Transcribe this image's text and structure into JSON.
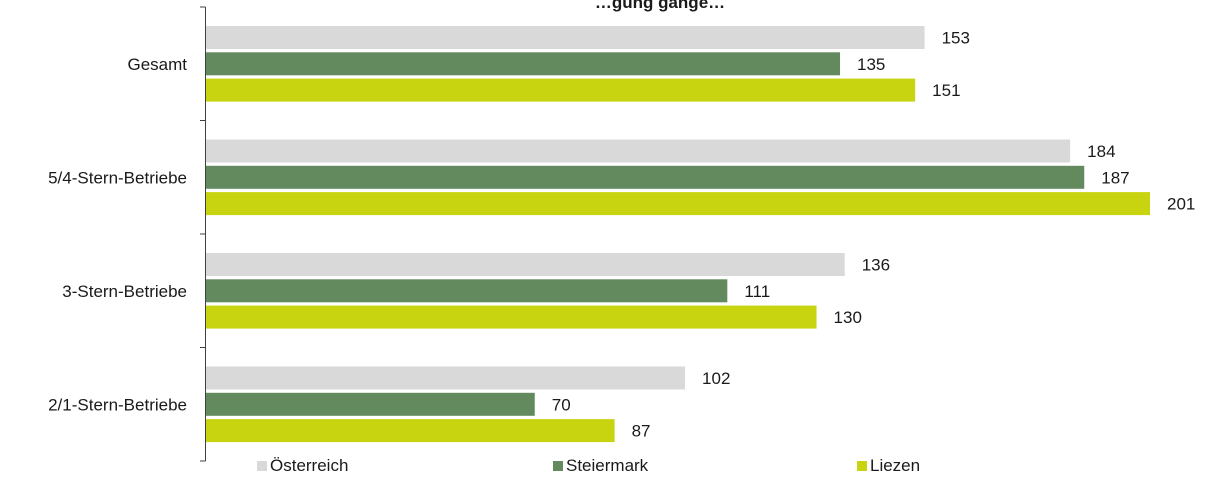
{
  "chart_data": {
    "type": "bar",
    "orientation": "horizontal",
    "title": "…gung gänge…",
    "categories": [
      "Gesamt",
      "5/4-Stern-Betriebe",
      "3-Stern-Betriebe",
      "2/1-Stern-Betriebe"
    ],
    "series": [
      {
        "name": "Österreich",
        "color": "#d9d9d9",
        "values": [
          153,
          184,
          136,
          102
        ]
      },
      {
        "name": "Steiermark",
        "color": "#638a5e",
        "values": [
          135,
          187,
          111,
          70
        ]
      },
      {
        "name": "Liezen",
        "color": "#c8d410",
        "values": [
          151,
          201,
          130,
          87
        ]
      }
    ],
    "xlim": [
      0,
      201
    ],
    "grid": false,
    "legend_position": "bottom"
  }
}
